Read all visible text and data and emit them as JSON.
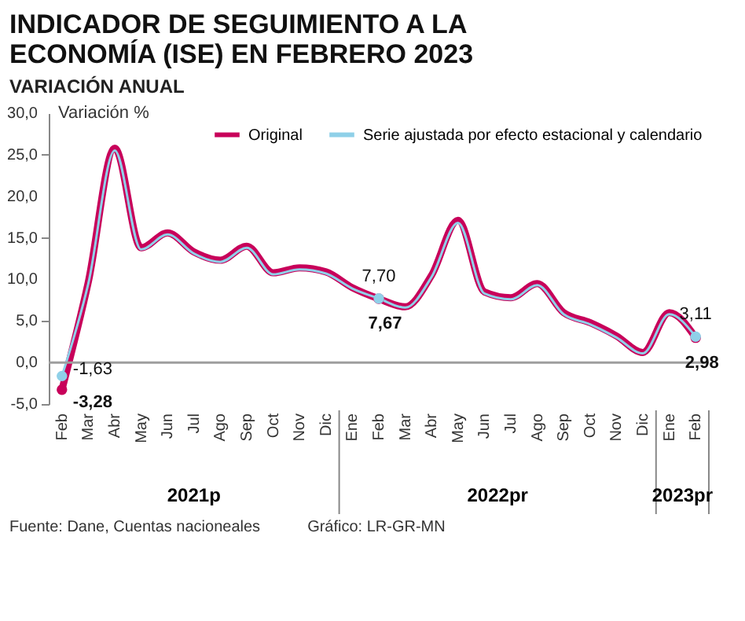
{
  "chart_data": {
    "type": "line",
    "title": "INDICADOR DE SEGUIMIENTO A LA ECONOMÍA (ISE) EN FEBRERO 2023",
    "subtitle": "VARIACIÓN ANUAL",
    "ylabel": "Variación %",
    "categories": [
      "Feb",
      "Mar",
      "Abr",
      "May",
      "Jun",
      "Jul",
      "Ago",
      "Sep",
      "Oct",
      "Nov",
      "Dic",
      "Ene",
      "Feb",
      "Mar",
      "Abr",
      "May",
      "Jun",
      "Jul",
      "Ago",
      "Sep",
      "Oct",
      "Nov",
      "Dic",
      "Ene",
      "Feb"
    ],
    "series": [
      {
        "name": "Original",
        "color": "#c8005a",
        "values": [
          -3.28,
          9.7,
          25.8,
          13.8,
          15.6,
          13.3,
          12.3,
          14.0,
          10.8,
          11.4,
          10.9,
          9.0,
          7.67,
          6.7,
          10.5,
          17.1,
          8.5,
          7.8,
          9.5,
          6.0,
          4.8,
          3.2,
          1.2,
          6.0,
          2.98
        ],
        "value_labels": [
          "-3,28",
          null,
          null,
          null,
          null,
          null,
          null,
          null,
          null,
          null,
          null,
          null,
          "7,67",
          null,
          null,
          null,
          null,
          null,
          null,
          null,
          null,
          null,
          null,
          null,
          "2,98"
        ]
      },
      {
        "name": "Serie ajustada por efecto estacional y calendario",
        "color": "#8fd0e8",
        "values": [
          -1.63,
          9.5,
          25.5,
          13.6,
          15.4,
          13.1,
          12.1,
          13.8,
          10.6,
          11.2,
          10.7,
          8.9,
          7.7,
          6.6,
          10.3,
          16.8,
          8.3,
          7.6,
          9.3,
          5.8,
          4.6,
          3.0,
          1.1,
          5.8,
          3.11
        ],
        "value_labels": [
          "-1,63",
          null,
          null,
          null,
          null,
          null,
          null,
          null,
          null,
          null,
          null,
          null,
          "7,70",
          null,
          null,
          null,
          null,
          null,
          null,
          null,
          null,
          null,
          null,
          null,
          "3,11"
        ]
      }
    ],
    "ylim": [
      -5,
      30
    ],
    "yticks": [
      {
        "value": -5,
        "label": "-5,0"
      },
      {
        "value": 0,
        "label": "0,0"
      },
      {
        "value": 5,
        "label": "5,0"
      },
      {
        "value": 10,
        "label": "10,0"
      },
      {
        "value": 15,
        "label": "15,0"
      },
      {
        "value": 20,
        "label": "20,0"
      },
      {
        "value": 25,
        "label": "25,0"
      },
      {
        "value": 30,
        "label": "30,0"
      }
    ],
    "ref_lines": [
      {
        "axis": "y",
        "value": 0,
        "color": "#9e9e9e"
      }
    ],
    "grid": false,
    "legend": "top right",
    "annotations": [
      "2021p",
      "2022pr",
      "2023pr",
      "Fuente: Dane, Cuentas nacioneales",
      "Gráfico: LR-GR-MN"
    ]
  }
}
